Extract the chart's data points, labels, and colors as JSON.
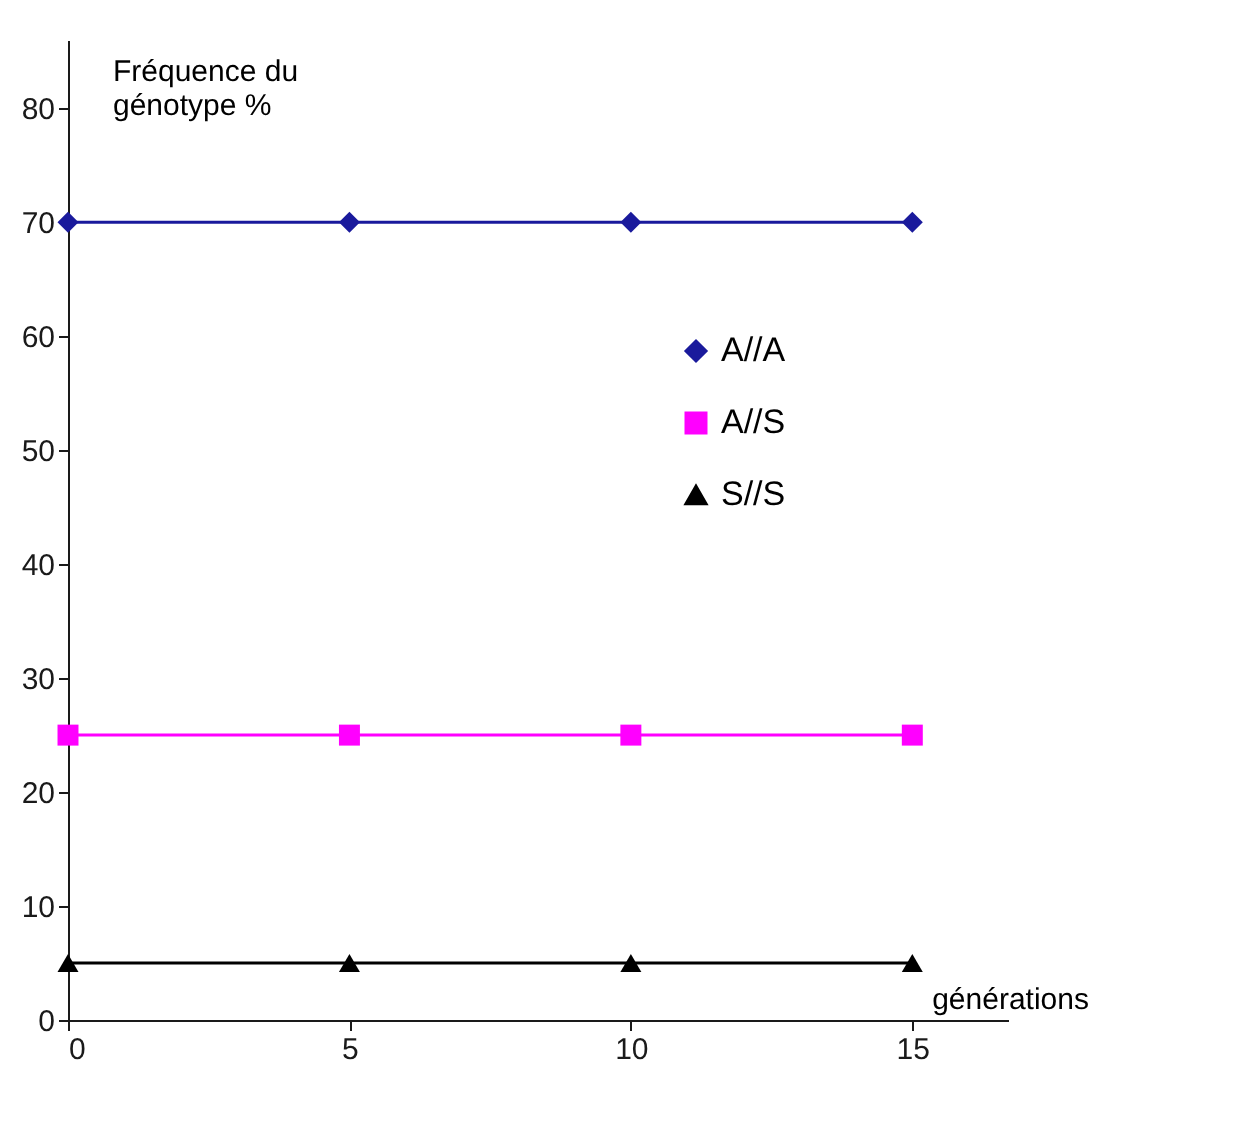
{
  "chart_data": {
    "type": "line",
    "xlabel": "générations",
    "ylabel": "Fréquence du\ngénotype %",
    "x": [
      0,
      5,
      10,
      15
    ],
    "series": [
      {
        "name": "A//A",
        "color": "#1a1a9c",
        "marker": "diamond",
        "values": [
          70,
          70,
          70,
          70
        ]
      },
      {
        "name": "A//S",
        "color": "#ff00ff",
        "marker": "square",
        "values": [
          25,
          25,
          25,
          25
        ]
      },
      {
        "name": "S//S",
        "color": "#000000",
        "marker": "triangle",
        "values": [
          5,
          5,
          5,
          5
        ]
      }
    ],
    "xlim": [
      0,
      16.7
    ],
    "ylim": [
      0,
      86
    ],
    "xticks": [
      0,
      5,
      10,
      15
    ],
    "yticks": [
      0,
      10,
      20,
      30,
      40,
      50,
      60,
      70,
      80
    ],
    "grid": false,
    "legend": "right",
    "line_style": "solid"
  }
}
